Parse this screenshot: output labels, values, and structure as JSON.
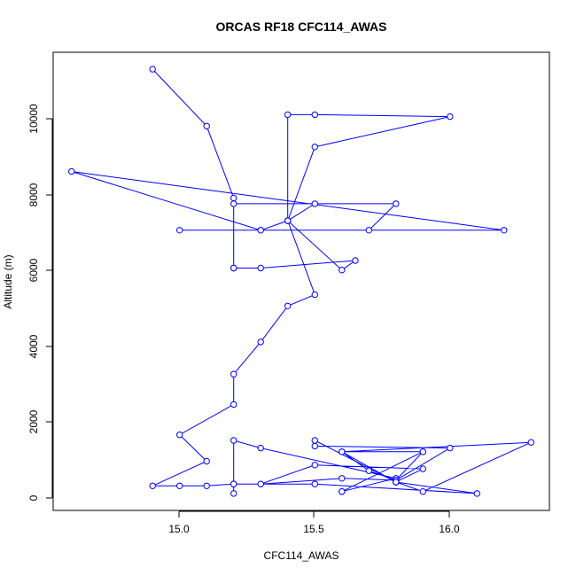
{
  "chart_data": {
    "type": "line",
    "title": "ORCAS RF18 CFC114_AWAS",
    "xlabel": "CFC114_AWAS",
    "ylabel": "Altitude (m)",
    "xlim": [
      14.6,
      16.3
    ],
    "ylim": [
      100,
      11300
    ],
    "x_ticks": [
      "15.0",
      "15.5",
      "16.0"
    ],
    "y_ticks": [
      "0",
      "2000",
      "4000",
      "6000",
      "8000",
      "10000"
    ],
    "grid": false,
    "series_color": "#0000ff",
    "series": [
      {
        "markers": "open-circle",
        "x": [
          14.9,
          15.1,
          15.2,
          15.2,
          15.2,
          15.3,
          15.65,
          15.6,
          15.4,
          15.3,
          14.6,
          16.2,
          15.0,
          15.3,
          15.7,
          15.8,
          15.2,
          15.5,
          15.4,
          15.4,
          15.5,
          16.0,
          15.5,
          15.4,
          15.5,
          15.4,
          15.3,
          15.2,
          15.2,
          15.0,
          15.1,
          14.9,
          15.0,
          15.1,
          15.2,
          15.2,
          15.3,
          15.8,
          15.6,
          15.6,
          15.9,
          15.8,
          16.0,
          15.5,
          15.5,
          15.8,
          15.9,
          15.5,
          15.3,
          15.6,
          15.8,
          15.8,
          15.9,
          16.3,
          15.6,
          15.9,
          15.8,
          15.7,
          15.6,
          15.8,
          15.8,
          16.1,
          15.5,
          15.2,
          15.2
        ],
        "y": [
          11300,
          9800,
          7900,
          6050,
          6050,
          6050,
          6250,
          6000,
          7300,
          7050,
          8600,
          7050,
          7050,
          7050,
          7050,
          7750,
          7750,
          7750,
          7300,
          10100,
          10100,
          10050,
          9250,
          7300,
          5350,
          5050,
          4100,
          3250,
          2450,
          1650,
          950,
          300,
          300,
          300,
          350,
          1500,
          1300,
          500,
          150,
          150,
          1200,
          450,
          1300,
          1350,
          1500,
          400,
          750,
          850,
          350,
          500,
          450,
          400,
          150,
          1450,
          1200,
          1200,
          450,
          700,
          1200,
          400,
          400,
          100,
          350,
          350,
          100
        ]
      }
    ]
  }
}
